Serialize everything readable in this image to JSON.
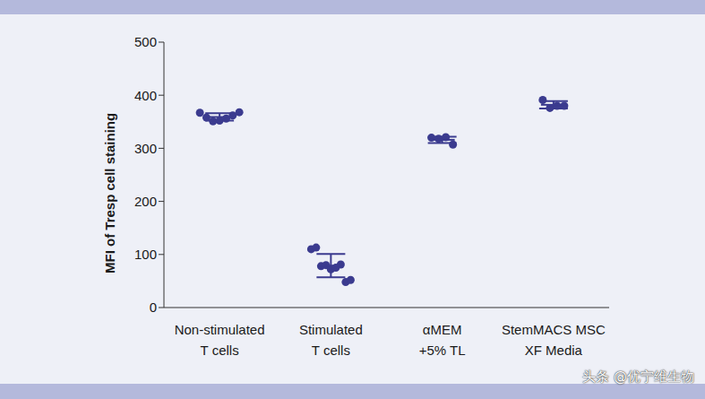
{
  "chart_data": {
    "type": "scatter",
    "ylabel": "MFI of Tresp cell staining",
    "categories": [
      "Non-stimulated\nT cells",
      "Stimulated\nT cells",
      "αMEM\n+5% TL",
      "StemMACS MSC\nXF Media"
    ],
    "values": [
      [
        367,
        358,
        351,
        352,
        356,
        362,
        368
      ],
      [
        110,
        113,
        78,
        80,
        72,
        75,
        81,
        48,
        52
      ],
      [
        320,
        318,
        321,
        307
      ],
      [
        391,
        376,
        380,
        380
      ]
    ],
    "means": [
      359,
      79,
      316,
      382
    ],
    "errors": [
      7,
      22,
      6,
      7
    ],
    "color": "#3b3b8f",
    "ylim": [
      0,
      500
    ],
    "yticks": [
      0,
      100,
      200,
      300,
      400,
      500
    ],
    "grid": false,
    "annotations": [
      "头条 @优宁维生物"
    ]
  }
}
